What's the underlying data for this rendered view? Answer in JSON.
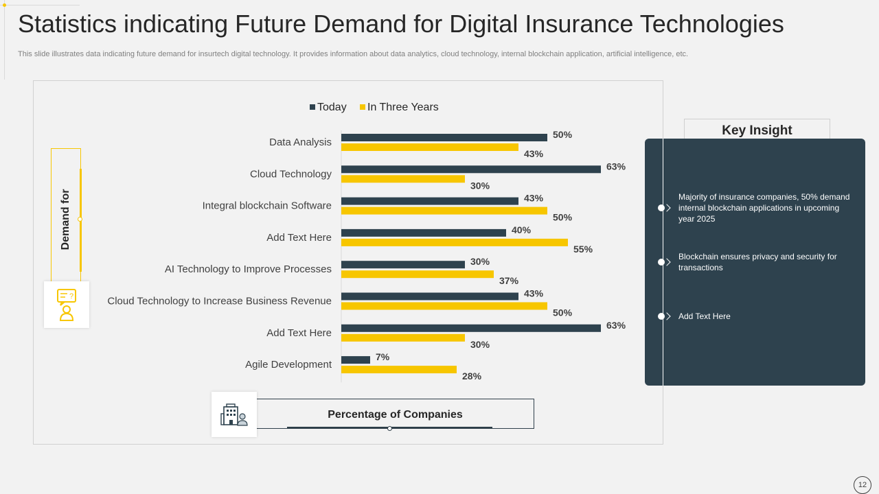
{
  "slide": {
    "title": "Statistics indicating Future Demand for Digital Insurance Technologies",
    "subtitle": "This slide illustrates data indicating future demand for insurtech digital technology. It provides information about data analytics, cloud technology, internal blockchain application, artificial intelligence, etc.",
    "page_number": "12"
  },
  "chart_data": {
    "type": "bar",
    "orientation": "horizontal",
    "categories": [
      "Data Analysis",
      "Cloud Technology",
      "Integral blockchain Software",
      "Add Text Here",
      "AI Technology to Improve Processes",
      "Cloud Technology to Increase Business Revenue",
      "Add Text Here",
      "Agile Development"
    ],
    "series": [
      {
        "name": "Today",
        "color": "#2e424e",
        "values": [
          50,
          63,
          43,
          40,
          30,
          43,
          63,
          7
        ]
      },
      {
        "name": "In Three Years",
        "color": "#f7c600",
        "values": [
          43,
          30,
          50,
          55,
          37,
          50,
          30,
          28
        ]
      }
    ],
    "value_suffix": "%",
    "xlim": [
      0,
      63
    ],
    "legend": "top",
    "ylabel": "Demand for",
    "xlabel": "Percentage of Companies",
    "grid": false
  },
  "key_insight": {
    "heading": "Key Insight",
    "items": [
      "Majority of insurance companies, 50% demand internal blockchain applications in upcoming year 2025",
      "Blockchain ensures privacy and security for transactions",
      "Add Text Here"
    ]
  },
  "icons": {
    "question_person": "question-person-icon",
    "building_person": "building-person-icon"
  }
}
